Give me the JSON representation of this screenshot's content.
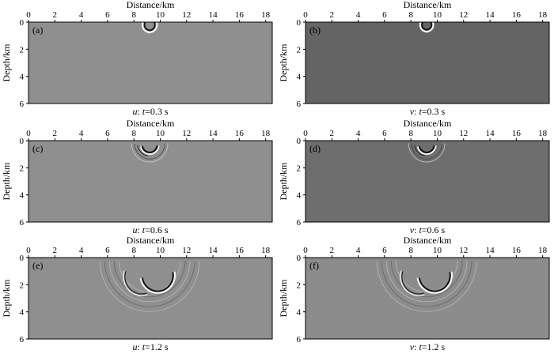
{
  "figure": {
    "panels": [
      {
        "letter": "(a)",
        "xlabel": "Distance/km",
        "ylabel": "Depth/km",
        "caption_var": "u",
        "caption_sep": ":",
        "caption_t": "t",
        "caption_rest": "=0.3 s",
        "bg": "#8f8f8f"
      },
      {
        "letter": "(b)",
        "xlabel": "Distance/km",
        "ylabel": "Depth/km",
        "caption_var": "v",
        "caption_sep": ":",
        "caption_t": "t",
        "caption_rest": "=0.3 s",
        "bg": "#646464"
      },
      {
        "letter": "(c)",
        "xlabel": "Distance/km",
        "ylabel": "Depth/km",
        "caption_var": "u",
        "caption_sep": ":",
        "caption_t": "t",
        "caption_rest": "=0.6 s",
        "bg": "#8f8f8f"
      },
      {
        "letter": "(d)",
        "xlabel": "Distance/km",
        "ylabel": "Depth/km",
        "caption_var": "v",
        "caption_sep": ":",
        "caption_t": "t",
        "caption_rest": "=0.6 s",
        "bg": "#6e6e6e"
      },
      {
        "letter": "(e)",
        "xlabel": "Distance/km",
        "ylabel": "Depth/km",
        "caption_var": "u",
        "caption_sep": ":",
        "caption_t": "t",
        "caption_rest": "=1.2 s",
        "bg": "#8f8f8f"
      },
      {
        "letter": "(f)",
        "xlabel": "Distance/km",
        "ylabel": "Depth/km",
        "caption_var": "v",
        "caption_sep": ":",
        "caption_t": "t",
        "caption_rest": "=1.2 s",
        "bg": "#8c8c8c"
      }
    ],
    "x_ticks": [
      "0",
      "2",
      "4",
      "6",
      "8",
      "10",
      "12",
      "14",
      "16",
      "18"
    ],
    "y_ticks": [
      "0",
      "2",
      "4",
      "6"
    ]
  },
  "chart_data": [
    {
      "type": "heatmap",
      "panel": "(a)",
      "field": "u",
      "time_s": 0.3,
      "xlim": [
        0,
        18.5
      ],
      "ylim": [
        0,
        6
      ],
      "source_x_km": 9.2,
      "source_depth_km": 0.2,
      "wavefront_radius_km": 0.55
    },
    {
      "type": "heatmap",
      "panel": "(b)",
      "field": "v",
      "time_s": 0.3,
      "xlim": [
        0,
        18.5
      ],
      "ylim": [
        0,
        6
      ],
      "source_x_km": 9.2,
      "source_depth_km": 0.2,
      "wavefront_radius_km": 0.5
    },
    {
      "type": "heatmap",
      "panel": "(c)",
      "field": "u",
      "time_s": 0.6,
      "xlim": [
        0,
        18.5
      ],
      "ylim": [
        0,
        6
      ],
      "source_x_km": 9.2,
      "source_depth_km": 0.2,
      "wavefront_radius_km": 1.1
    },
    {
      "type": "heatmap",
      "panel": "(d)",
      "field": "v",
      "time_s": 0.6,
      "xlim": [
        0,
        18.5
      ],
      "ylim": [
        0,
        6
      ],
      "source_x_km": 9.2,
      "source_depth_km": 0.2,
      "wavefront_radius_km": 1.1
    },
    {
      "type": "heatmap",
      "panel": "(e)",
      "field": "u",
      "time_s": 1.2,
      "xlim": [
        0,
        18.5
      ],
      "ylim": [
        0,
        6
      ],
      "source_x_km": 9.2,
      "source_depth_km": 0.2,
      "wavefront_radius_km": 3.6
    },
    {
      "type": "heatmap",
      "panel": "(f)",
      "field": "v",
      "time_s": 1.2,
      "xlim": [
        0,
        18.5
      ],
      "ylim": [
        0,
        6
      ],
      "source_x_km": 9.2,
      "source_depth_km": 0.2,
      "wavefront_radius_km": 3.6
    }
  ]
}
